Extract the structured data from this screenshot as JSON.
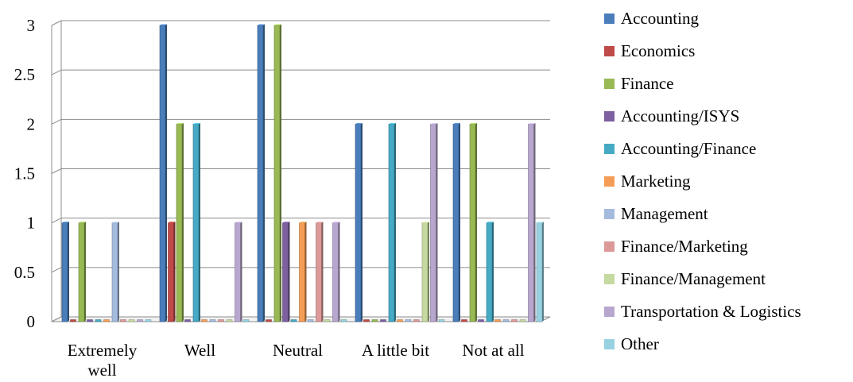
{
  "chart_data": {
    "type": "bar",
    "style": "3d-clustered",
    "categories": [
      "Extremely well",
      "Well",
      "Neutral",
      "A little bit",
      "Not at all"
    ],
    "category_labels": [
      [
        "Extremely",
        "well"
      ],
      [
        "Well"
      ],
      [
        "Neutral"
      ],
      [
        "A little bit"
      ],
      [
        "Not at all"
      ]
    ],
    "ylim": [
      0,
      3
    ],
    "yticks": [
      "0",
      "0.5",
      "1",
      "1.5",
      "2",
      "2.5",
      "3"
    ],
    "ytick_values": [
      0,
      0.5,
      1,
      1.5,
      2,
      2.5,
      3
    ],
    "grid": true,
    "legend_position": "right",
    "series": [
      {
        "name": "Accounting",
        "color": "#4a7ebb",
        "values": [
          1,
          3,
          3,
          2,
          2
        ]
      },
      {
        "name": "Economics",
        "color": "#be4b48",
        "values": [
          0,
          1,
          0,
          0,
          0
        ]
      },
      {
        "name": "Finance",
        "color": "#98b954",
        "values": [
          1,
          2,
          3,
          0,
          2
        ]
      },
      {
        "name": "Accounting/ISYS",
        "color": "#7d60a0",
        "values": [
          0,
          0,
          1,
          0,
          0
        ]
      },
      {
        "name": "Accounting/Finance",
        "color": "#46aac5",
        "values": [
          0,
          2,
          0,
          2,
          1
        ]
      },
      {
        "name": "Marketing",
        "color": "#f59d56",
        "values": [
          0,
          0,
          1,
          0,
          0
        ]
      },
      {
        "name": "Management",
        "color": "#a5bbde",
        "values": [
          1,
          0,
          0,
          0,
          0
        ]
      },
      {
        "name": "Finance/Marketing",
        "color": "#dc9997",
        "values": [
          0,
          0,
          1,
          0,
          0
        ]
      },
      {
        "name": "Finance/Management",
        "color": "#c6d9a0",
        "values": [
          0,
          0,
          0,
          1,
          0
        ]
      },
      {
        "name": "Transportation & Logistics",
        "color": "#b7a6cd",
        "values": [
          0,
          1,
          1,
          2,
          2
        ]
      },
      {
        "name": "Other",
        "color": "#98d2e2",
        "values": [
          0,
          0,
          0,
          0,
          1
        ]
      }
    ]
  }
}
